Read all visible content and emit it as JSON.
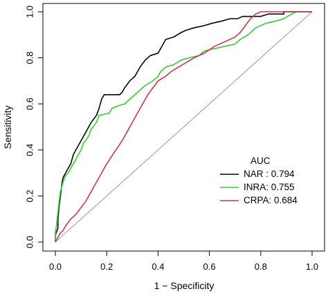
{
  "chart_data": {
    "type": "line",
    "title": "",
    "xlabel": "1 − Specificity",
    "ylabel": "Sensitivity",
    "xlim": [
      0,
      1
    ],
    "ylim": [
      0,
      1
    ],
    "xticks": [
      "0.0",
      "0.2",
      "0.4",
      "0.6",
      "0.8",
      "1.0"
    ],
    "yticks": [
      "0.0",
      "0.2",
      "0.4",
      "0.6",
      "0.8",
      "1.0"
    ],
    "grid": false,
    "legend": {
      "title": "AUC",
      "placement": "bottom-right",
      "entries": [
        {
          "name": "NAR",
          "auc": "0.794",
          "label": "NAR : 0.794",
          "color": "#000000"
        },
        {
          "name": "INRA",
          "auc": "0.755",
          "label": "INRA: 0.755",
          "color": "#33cc33"
        },
        {
          "name": "CRPA",
          "auc": "0.684",
          "label": "CRPA: 0.684",
          "color": "#cc3355"
        }
      ]
    },
    "reference_line": {
      "from": [
        0,
        0
      ],
      "to": [
        1,
        1
      ],
      "color": "#999999"
    },
    "series": [
      {
        "name": "NAR",
        "color": "#000000",
        "points": [
          [
            0,
            0
          ],
          [
            0,
            0.03
          ],
          [
            0.01,
            0.06
          ],
          [
            0.01,
            0.1
          ],
          [
            0.015,
            0.16
          ],
          [
            0.02,
            0.2
          ],
          [
            0.025,
            0.25
          ],
          [
            0.03,
            0.28
          ],
          [
            0.04,
            0.3
          ],
          [
            0.05,
            0.32
          ],
          [
            0.06,
            0.34
          ],
          [
            0.07,
            0.38
          ],
          [
            0.08,
            0.4
          ],
          [
            0.09,
            0.42
          ],
          [
            0.1,
            0.44
          ],
          [
            0.12,
            0.48
          ],
          [
            0.14,
            0.52
          ],
          [
            0.16,
            0.55
          ],
          [
            0.17,
            0.58
          ],
          [
            0.18,
            0.62
          ],
          [
            0.19,
            0.64
          ],
          [
            0.25,
            0.64
          ],
          [
            0.26,
            0.65
          ],
          [
            0.27,
            0.67
          ],
          [
            0.29,
            0.7
          ],
          [
            0.31,
            0.72
          ],
          [
            0.32,
            0.74
          ],
          [
            0.33,
            0.76
          ],
          [
            0.35,
            0.79
          ],
          [
            0.37,
            0.81
          ],
          [
            0.4,
            0.82
          ],
          [
            0.41,
            0.84
          ],
          [
            0.42,
            0.86
          ],
          [
            0.43,
            0.88
          ],
          [
            0.46,
            0.89
          ],
          [
            0.49,
            0.91
          ],
          [
            0.51,
            0.92
          ],
          [
            0.54,
            0.93
          ],
          [
            0.58,
            0.94
          ],
          [
            0.61,
            0.95
          ],
          [
            0.65,
            0.96
          ],
          [
            0.68,
            0.97
          ],
          [
            0.71,
            0.97
          ],
          [
            0.73,
            0.98
          ],
          [
            0.8,
            0.98
          ],
          [
            0.83,
            0.99
          ],
          [
            0.89,
            0.99
          ],
          [
            0.89,
            1.0
          ],
          [
            1.0,
            1.0
          ]
        ]
      },
      {
        "name": "INRA",
        "color": "#33cc33",
        "points": [
          [
            0,
            0
          ],
          [
            0,
            0.04
          ],
          [
            0.005,
            0.08
          ],
          [
            0.01,
            0.13
          ],
          [
            0.015,
            0.18
          ],
          [
            0.02,
            0.22
          ],
          [
            0.03,
            0.26
          ],
          [
            0.04,
            0.29
          ],
          [
            0.05,
            0.3
          ],
          [
            0.07,
            0.34
          ],
          [
            0.08,
            0.36
          ],
          [
            0.1,
            0.4
          ],
          [
            0.11,
            0.43
          ],
          [
            0.13,
            0.46
          ],
          [
            0.14,
            0.49
          ],
          [
            0.16,
            0.52
          ],
          [
            0.17,
            0.55
          ],
          [
            0.21,
            0.56
          ],
          [
            0.22,
            0.58
          ],
          [
            0.24,
            0.59
          ],
          [
            0.27,
            0.6
          ],
          [
            0.29,
            0.62
          ],
          [
            0.31,
            0.64
          ],
          [
            0.33,
            0.66
          ],
          [
            0.35,
            0.68
          ],
          [
            0.38,
            0.7
          ],
          [
            0.4,
            0.72
          ],
          [
            0.41,
            0.74
          ],
          [
            0.43,
            0.76
          ],
          [
            0.46,
            0.77
          ],
          [
            0.49,
            0.79
          ],
          [
            0.52,
            0.8
          ],
          [
            0.56,
            0.81
          ],
          [
            0.58,
            0.83
          ],
          [
            0.62,
            0.84
          ],
          [
            0.66,
            0.85
          ],
          [
            0.7,
            0.86
          ],
          [
            0.72,
            0.88
          ],
          [
            0.75,
            0.9
          ],
          [
            0.78,
            0.93
          ],
          [
            0.82,
            0.95
          ],
          [
            0.86,
            0.96
          ],
          [
            0.89,
            0.97
          ],
          [
            0.92,
            0.99
          ],
          [
            0.94,
            1.0
          ],
          [
            1.0,
            1.0
          ]
        ]
      },
      {
        "name": "CRPA",
        "color": "#cc3355",
        "points": [
          [
            0,
            0
          ],
          [
            0.01,
            0.02
          ],
          [
            0.02,
            0.04
          ],
          [
            0.03,
            0.05
          ],
          [
            0.04,
            0.07
          ],
          [
            0.06,
            0.1
          ],
          [
            0.08,
            0.12
          ],
          [
            0.1,
            0.15
          ],
          [
            0.12,
            0.18
          ],
          [
            0.14,
            0.22
          ],
          [
            0.16,
            0.26
          ],
          [
            0.18,
            0.3
          ],
          [
            0.2,
            0.34
          ],
          [
            0.23,
            0.39
          ],
          [
            0.26,
            0.44
          ],
          [
            0.28,
            0.48
          ],
          [
            0.3,
            0.52
          ],
          [
            0.32,
            0.56
          ],
          [
            0.34,
            0.6
          ],
          [
            0.36,
            0.64
          ],
          [
            0.38,
            0.67
          ],
          [
            0.4,
            0.7
          ],
          [
            0.43,
            0.72
          ],
          [
            0.45,
            0.74
          ],
          [
            0.48,
            0.76
          ],
          [
            0.51,
            0.78
          ],
          [
            0.54,
            0.8
          ],
          [
            0.58,
            0.82
          ],
          [
            0.62,
            0.85
          ],
          [
            0.66,
            0.87
          ],
          [
            0.7,
            0.89
          ],
          [
            0.72,
            0.91
          ],
          [
            0.74,
            0.94
          ],
          [
            0.76,
            0.97
          ],
          [
            0.78,
            0.99
          ],
          [
            0.8,
            1.0
          ],
          [
            1.0,
            1.0
          ]
        ]
      }
    ]
  }
}
